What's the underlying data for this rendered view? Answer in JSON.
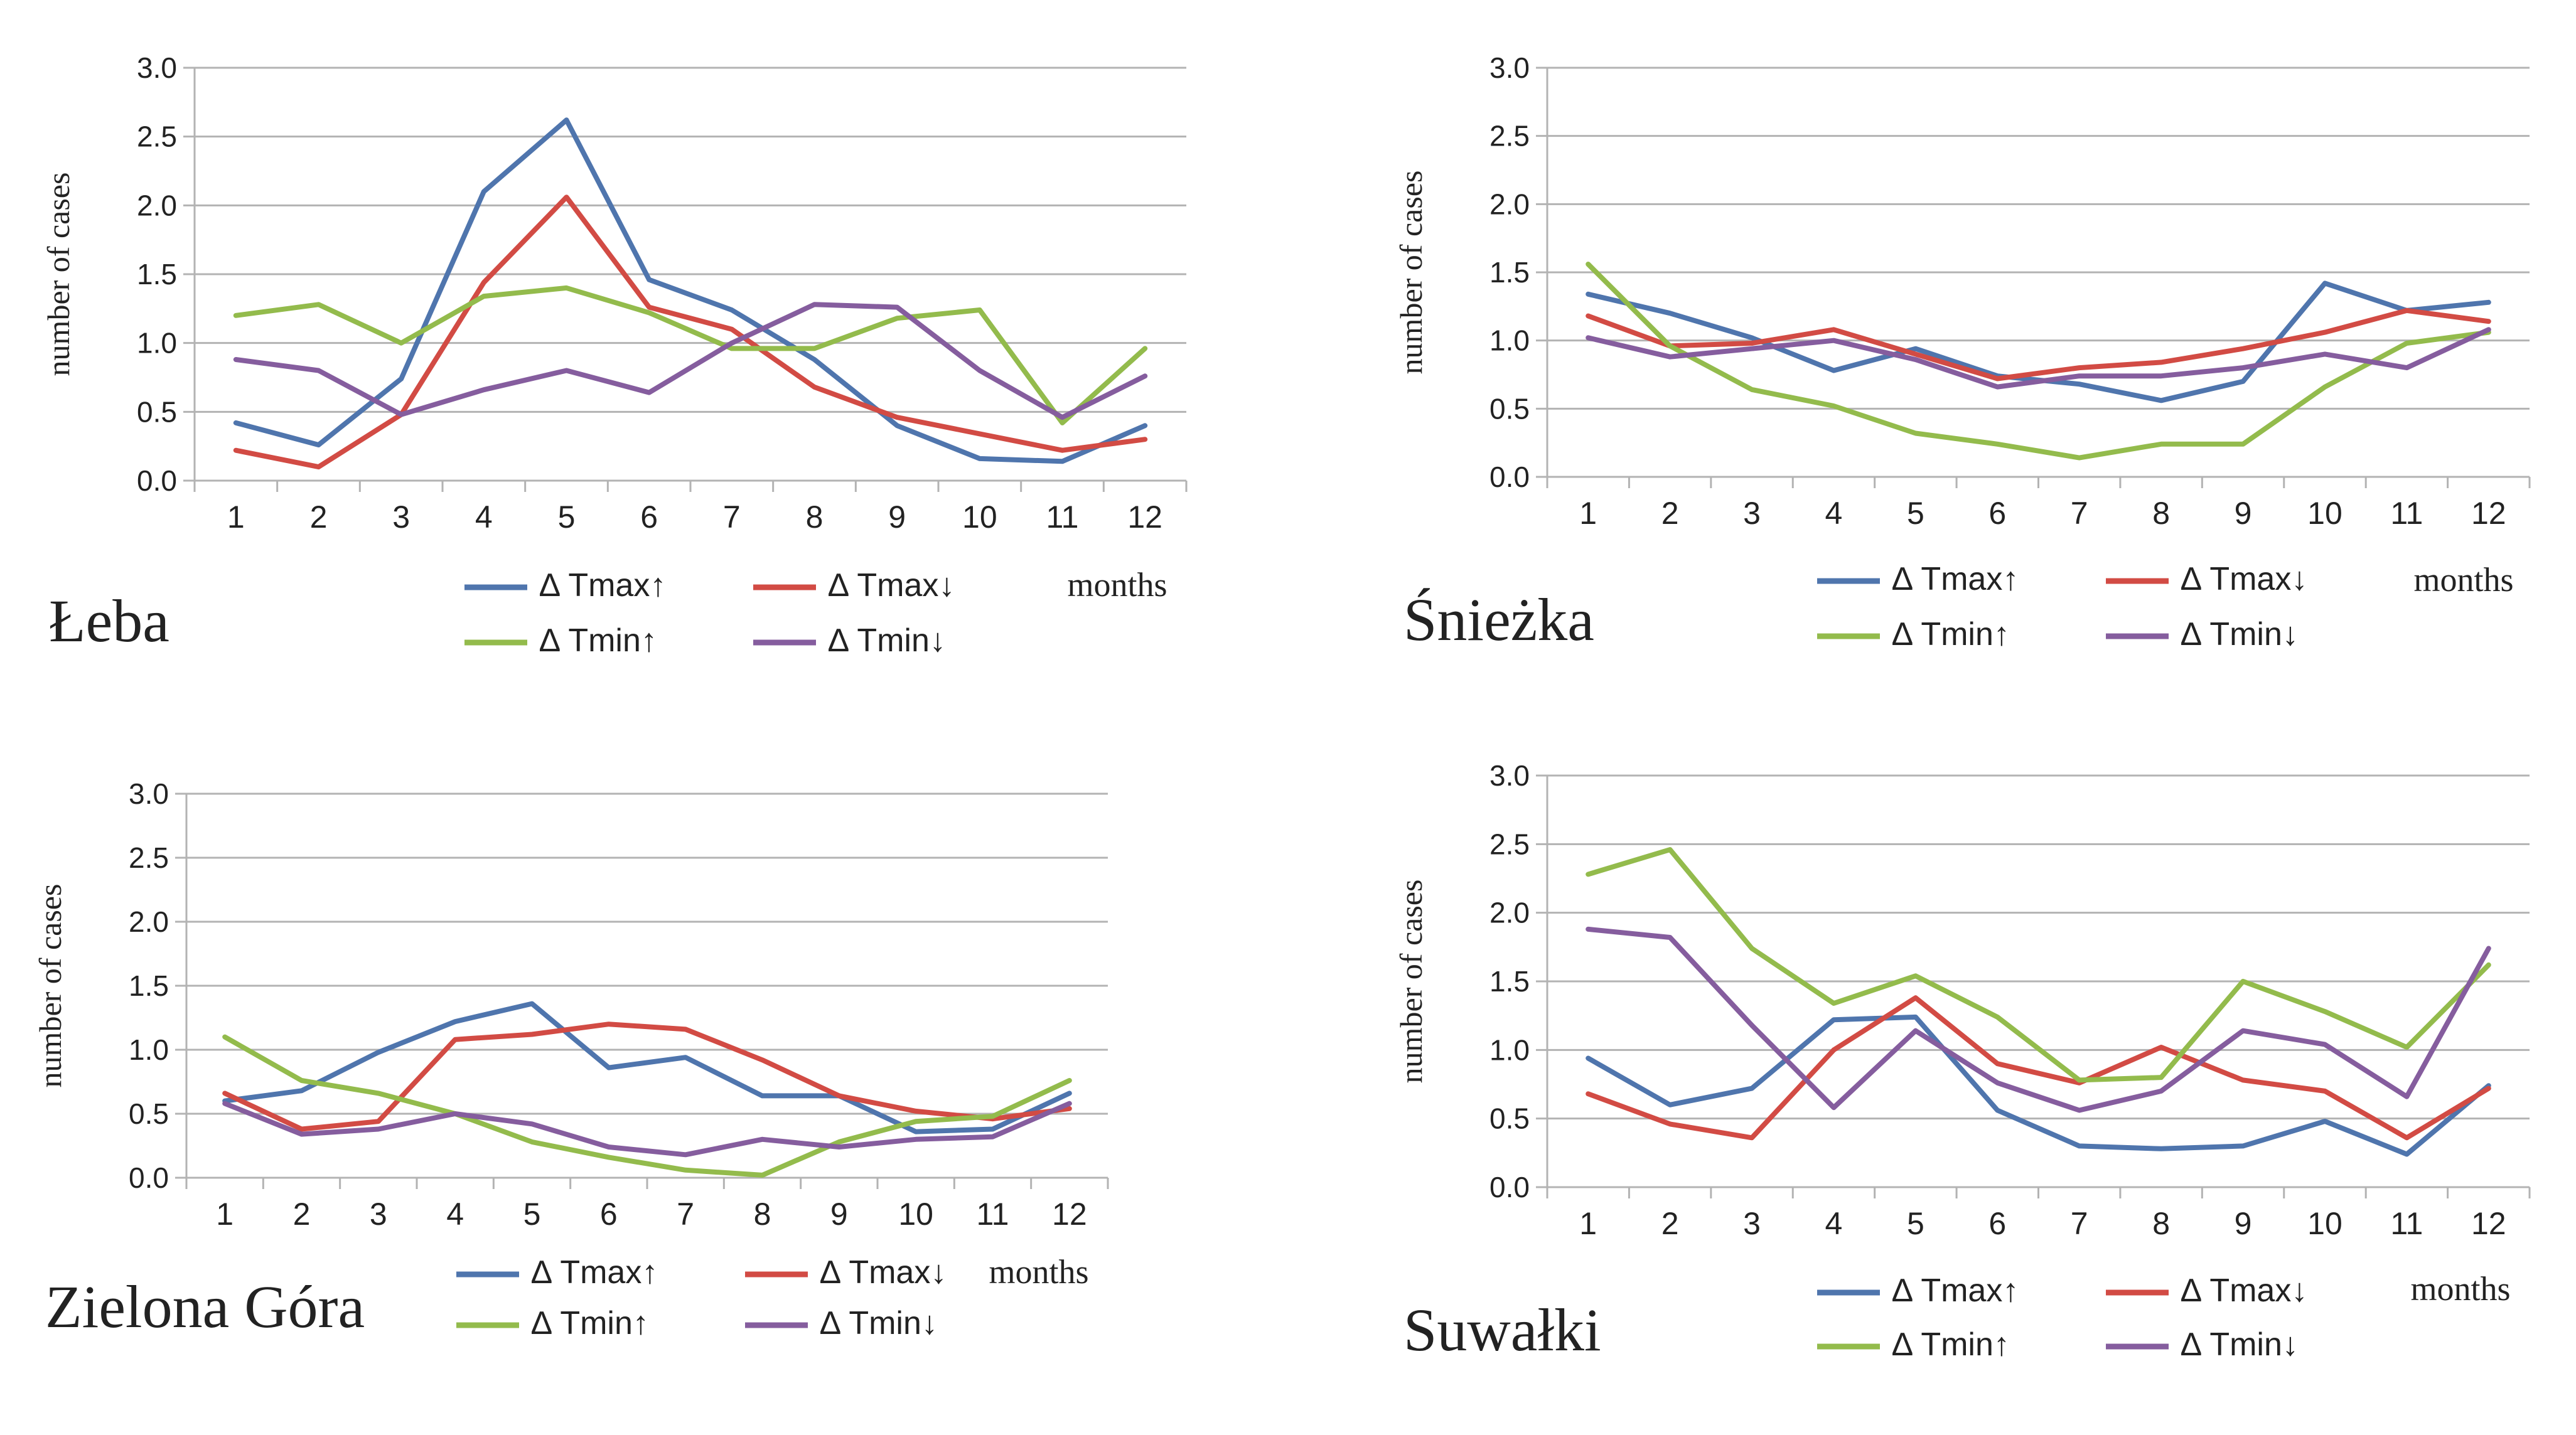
{
  "colors": {
    "dTmax_up": "#4f75ad",
    "dTmax_down": "#d24b44",
    "dTmin_up": "#93bb4c",
    "dTmin_down": "#855d9e",
    "grid": "#b3b3b3",
    "text": "#222222"
  },
  "chart_data": [
    {
      "type": "line",
      "station": "Łeba",
      "categories": [
        "1",
        "2",
        "3",
        "4",
        "5",
        "6",
        "7",
        "8",
        "9",
        "10",
        "11",
        "12"
      ],
      "xlabel": "months",
      "ylabel": "number of cases",
      "ylim": [
        0,
        3
      ],
      "yticks": [
        "0.0",
        "0.5",
        "1.0",
        "1.5",
        "2.0",
        "2.5",
        "3.0"
      ],
      "grid": true,
      "legend": "bottom",
      "series": [
        {
          "name": "∆ Tmax↑",
          "color_key": "dTmax_up",
          "values": [
            0.42,
            0.26,
            0.74,
            2.1,
            2.62,
            1.46,
            1.24,
            0.88,
            0.4,
            0.16,
            0.14,
            0.4
          ]
        },
        {
          "name": "∆ Tmax↓",
          "color_key": "dTmax_down",
          "values": [
            0.22,
            0.1,
            0.48,
            1.44,
            2.06,
            1.26,
            1.1,
            0.68,
            0.46,
            0.34,
            0.22,
            0.3
          ]
        },
        {
          "name": "∆ Tmin↑",
          "color_key": "dTmin_up",
          "values": [
            1.2,
            1.28,
            1.0,
            1.34,
            1.4,
            1.22,
            0.96,
            0.96,
            1.18,
            1.24,
            0.42,
            0.96
          ]
        },
        {
          "name": "∆ Tmin↓",
          "color_key": "dTmin_down",
          "values": [
            0.88,
            0.8,
            0.48,
            0.66,
            0.8,
            0.64,
            1.0,
            1.28,
            1.26,
            0.8,
            0.46,
            0.76
          ]
        }
      ]
    },
    {
      "type": "line",
      "station": "Śnieżka",
      "categories": [
        "1",
        "2",
        "3",
        "4",
        "5",
        "6",
        "7",
        "8",
        "9",
        "10",
        "11",
        "12"
      ],
      "xlabel": "months",
      "ylabel": "number of cases",
      "ylim": [
        0,
        3
      ],
      "yticks": [
        "0.0",
        "0.5",
        "1.0",
        "1.5",
        "2.0",
        "2.5",
        "3.0"
      ],
      "grid": true,
      "legend": "bottom",
      "series": [
        {
          "name": "∆ Tmax↑",
          "color_key": "dTmax_up",
          "values": [
            1.34,
            1.2,
            1.02,
            0.78,
            0.94,
            0.74,
            0.68,
            0.56,
            0.7,
            1.42,
            1.22,
            1.28
          ]
        },
        {
          "name": "∆ Tmax↓",
          "color_key": "dTmax_down",
          "values": [
            1.18,
            0.96,
            0.98,
            1.08,
            0.9,
            0.72,
            0.8,
            0.84,
            0.94,
            1.06,
            1.22,
            1.14
          ]
        },
        {
          "name": "∆ Tmin↑",
          "color_key": "dTmin_up",
          "values": [
            1.56,
            0.96,
            0.64,
            0.52,
            0.32,
            0.24,
            0.14,
            0.24,
            0.24,
            0.66,
            0.98,
            1.06
          ]
        },
        {
          "name": "∆ Tmin↓",
          "color_key": "dTmin_down",
          "values": [
            1.02,
            0.88,
            0.94,
            1.0,
            0.86,
            0.66,
            0.74,
            0.74,
            0.8,
            0.9,
            0.8,
            1.08
          ]
        }
      ]
    },
    {
      "type": "line",
      "station": "Zielona Góra",
      "categories": [
        "1",
        "2",
        "3",
        "4",
        "5",
        "6",
        "7",
        "8",
        "9",
        "10",
        "11",
        "12"
      ],
      "xlabel": "months",
      "ylabel": "number of cases",
      "ylim": [
        0,
        3
      ],
      "yticks": [
        "0.0",
        "0.5",
        "1.0",
        "1.5",
        "2.0",
        "2.5",
        "3.0"
      ],
      "grid": true,
      "legend": "bottom",
      "series": [
        {
          "name": "∆ Tmax↑",
          "color_key": "dTmax_up",
          "values": [
            0.6,
            0.68,
            0.98,
            1.22,
            1.36,
            0.86,
            0.94,
            0.64,
            0.64,
            0.36,
            0.38,
            0.66
          ]
        },
        {
          "name": "∆ Tmax↓",
          "color_key": "dTmax_down",
          "values": [
            0.66,
            0.38,
            0.44,
            1.08,
            1.12,
            1.2,
            1.16,
            0.92,
            0.64,
            0.52,
            0.46,
            0.54
          ]
        },
        {
          "name": "∆ Tmin↑",
          "color_key": "dTmin_up",
          "values": [
            1.1,
            0.76,
            0.66,
            0.5,
            0.28,
            0.16,
            0.06,
            0.02,
            0.28,
            0.44,
            0.48,
            0.76
          ]
        },
        {
          "name": "∆ Tmin↓",
          "color_key": "dTmin_down",
          "values": [
            0.58,
            0.34,
            0.38,
            0.5,
            0.42,
            0.24,
            0.18,
            0.3,
            0.24,
            0.3,
            0.32,
            0.58
          ]
        }
      ]
    },
    {
      "type": "line",
      "station": "Suwałki",
      "categories": [
        "1",
        "2",
        "3",
        "4",
        "5",
        "6",
        "7",
        "8",
        "9",
        "10",
        "11",
        "12"
      ],
      "xlabel": "months",
      "ylabel": "number of cases",
      "ylim": [
        0,
        3
      ],
      "yticks": [
        "0.0",
        "0.5",
        "1.0",
        "1.5",
        "2.0",
        "2.5",
        "3.0"
      ],
      "grid": true,
      "legend": "bottom",
      "series": [
        {
          "name": "∆ Tmax↑",
          "color_key": "dTmax_up",
          "values": [
            0.94,
            0.6,
            0.72,
            1.22,
            1.24,
            0.56,
            0.3,
            0.28,
            0.3,
            0.48,
            0.24,
            0.74
          ]
        },
        {
          "name": "∆ Tmax↓",
          "color_key": "dTmax_down",
          "values": [
            0.68,
            0.46,
            0.36,
            1.0,
            1.38,
            0.9,
            0.76,
            1.02,
            0.78,
            0.7,
            0.36,
            0.72
          ]
        },
        {
          "name": "∆ Tmin↑",
          "color_key": "dTmin_up",
          "values": [
            2.28,
            2.46,
            1.74,
            1.34,
            1.54,
            1.24,
            0.78,
            0.8,
            1.5,
            1.28,
            1.02,
            1.62
          ]
        },
        {
          "name": "∆ Tmin↓",
          "color_key": "dTmin_down",
          "values": [
            1.88,
            1.82,
            1.18,
            0.58,
            1.14,
            0.76,
            0.56,
            0.7,
            1.14,
            1.04,
            0.66,
            1.74
          ]
        }
      ]
    }
  ]
}
